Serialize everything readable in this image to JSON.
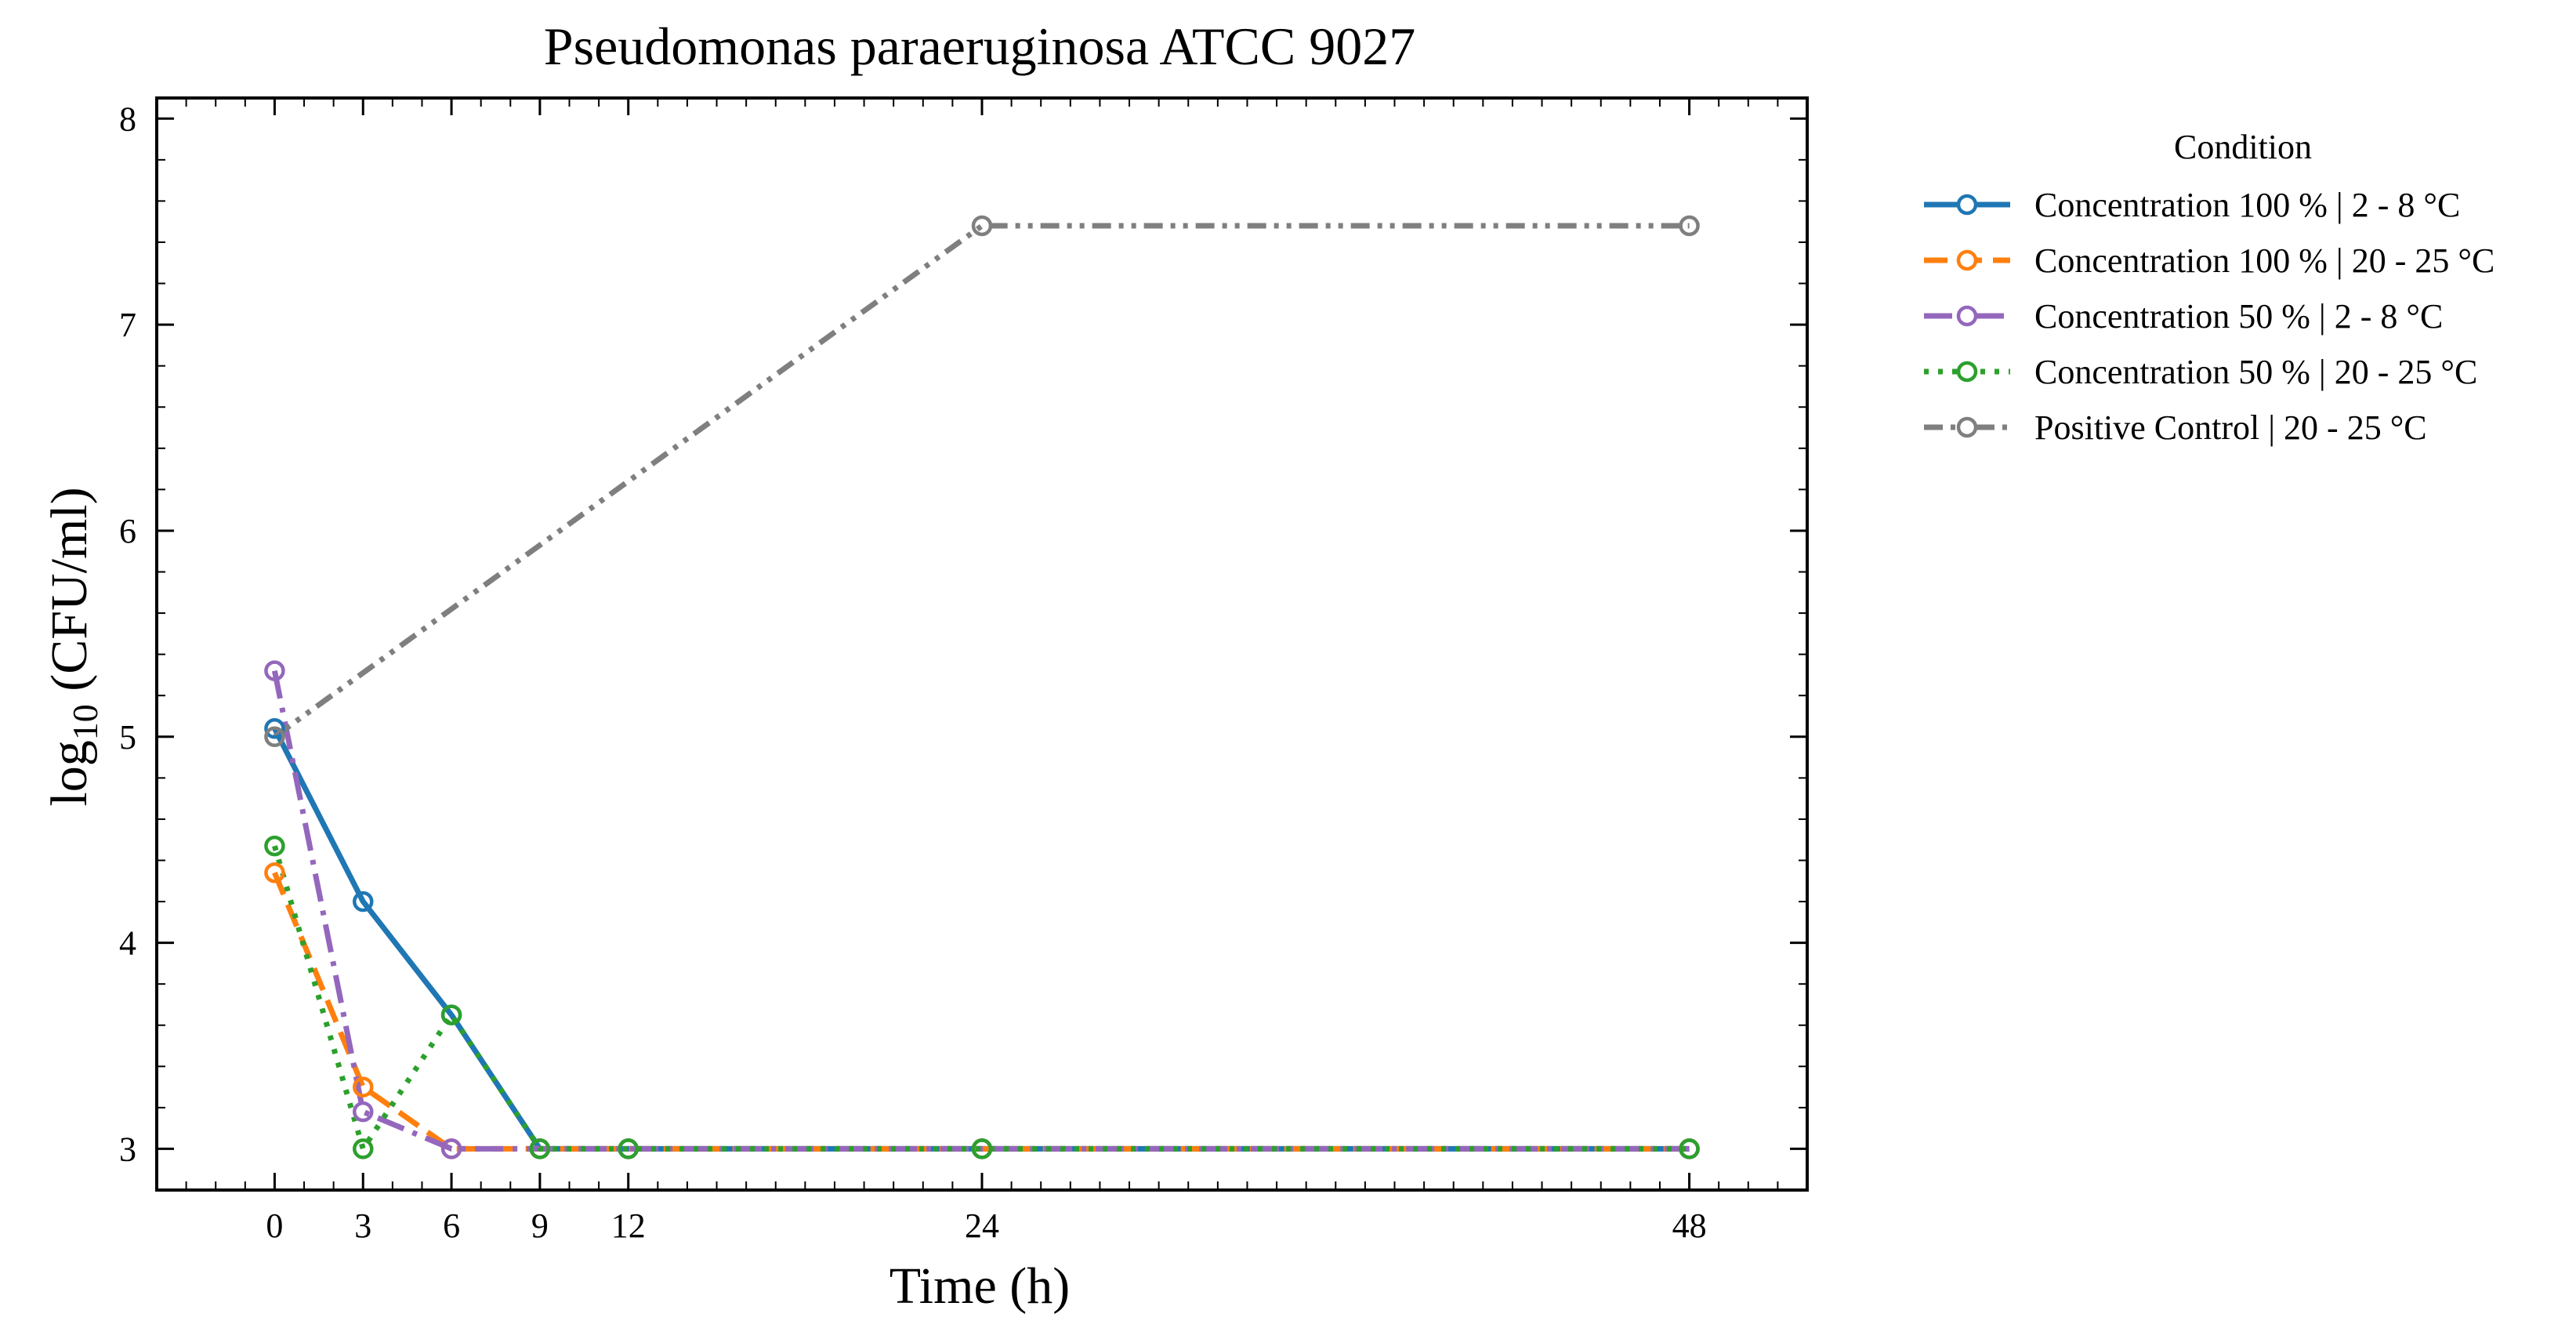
{
  "chart_data": {
    "type": "line",
    "title": "Pseudomonas paraeruginosa ATCC 9027",
    "xlabel": "Time (h)",
    "ylabel": {
      "prefix": "log",
      "subscript": "10",
      "suffix": " (CFU/ml)"
    },
    "xlim": [
      -4.0,
      52.0
    ],
    "ylim": [
      2.8,
      8.1
    ],
    "xticks": [
      0,
      3,
      6,
      9,
      12,
      24,
      48
    ],
    "yticks": [
      3,
      4,
      5,
      6,
      7,
      8
    ],
    "grid": false,
    "legend": {
      "title": "Condition",
      "placement": "outside-right-top"
    },
    "series": [
      {
        "name": "Concentration 100 % | 2 - 8 °C",
        "color": "#1f77b4",
        "dash": "solid",
        "x": [
          0,
          3,
          6,
          9,
          12,
          24,
          48
        ],
        "y": [
          5.04,
          4.2,
          3.65,
          3.0,
          3.0,
          3.0,
          3.0
        ]
      },
      {
        "name": "Concentration 100 % | 20 - 25 °C",
        "color": "#ff7f0e",
        "dash": "dashed",
        "x": [
          0,
          3,
          6,
          9,
          12,
          24,
          48
        ],
        "y": [
          4.34,
          3.3,
          3.0,
          3.0,
          3.0,
          3.0,
          3.0
        ]
      },
      {
        "name": "Concentration 50 % | 2 - 8 °C",
        "color": "#9467bd",
        "dash": "dashdot",
        "x": [
          0,
          3,
          6,
          9,
          12,
          24,
          48
        ],
        "y": [
          5.32,
          3.18,
          3.0,
          3.0,
          3.0,
          3.0,
          3.0
        ]
      },
      {
        "name": "Concentration 50 % | 20 - 25 °C",
        "color": "#2ca02c",
        "dash": "dotted",
        "x": [
          0,
          3,
          6,
          9,
          12,
          24,
          48
        ],
        "y": [
          4.47,
          3.0,
          3.65,
          3.0,
          3.0,
          3.0,
          3.0
        ]
      },
      {
        "name": "Positive Control | 20 - 25 °C",
        "color": "#7f7f7f",
        "dash": "dashdotdot",
        "x": [
          0,
          24,
          48
        ],
        "y": [
          5.0,
          7.48,
          7.48
        ]
      }
    ]
  }
}
